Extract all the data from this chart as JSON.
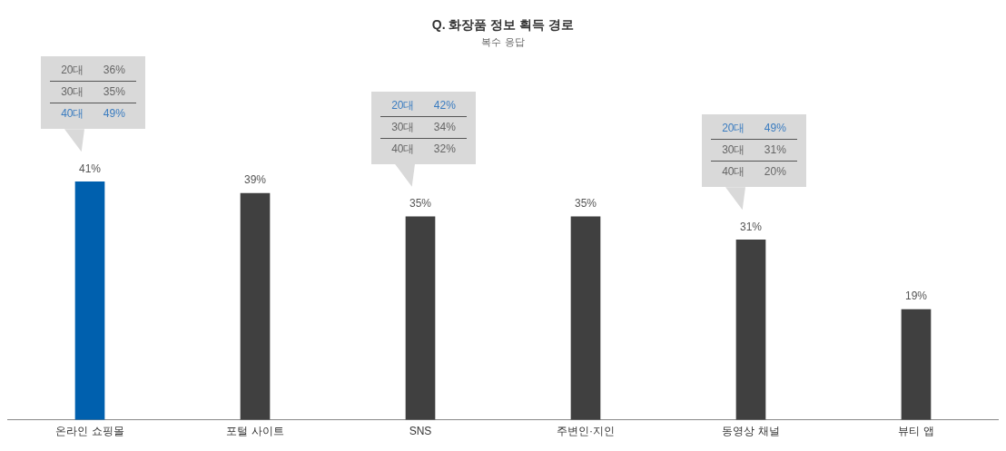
{
  "chart_data": {
    "type": "bar",
    "title": "Q. 화장품 정보 획득 경로",
    "subtitle": "복수 응답",
    "categories": [
      "온라인 쇼핑몰",
      "포털 사이트",
      "SNS",
      "주변인·지인",
      "동영상 채널",
      "뷰티 앱"
    ],
    "values": [
      41,
      39,
      35,
      35,
      31,
      19
    ],
    "colors": [
      "#0060ae",
      "#404040",
      "#404040",
      "#404040",
      "#404040",
      "#404040"
    ],
    "value_labels": [
      "41%",
      "39%",
      "35%",
      "35%",
      "31%",
      "19%"
    ],
    "grid": false,
    "legend": false,
    "annotations": [
      "20대 36%",
      "30대 35%",
      "40대 49%",
      "20대 42%",
      "30대 34%",
      "40대 32%",
      "20대 49%",
      "30대 31%",
      "40대 20%"
    ]
  }
}
